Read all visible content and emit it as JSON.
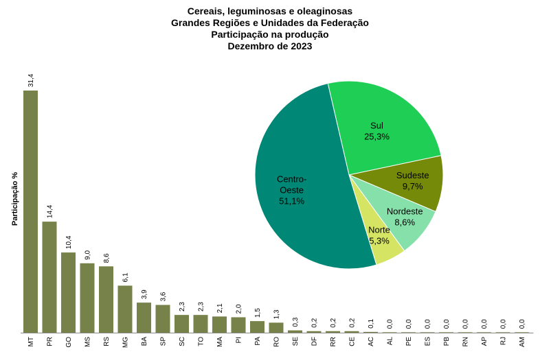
{
  "chart_data": [
    {
      "type": "bar",
      "title": [
        "Cereais, leguminosas e oleaginosas",
        "Grandes Regiões e Unidades da Federação",
        "Participação na produção",
        "Dezembro de 2023"
      ],
      "ylabel": "Participação %",
      "xlabel": "",
      "ylim": [
        0,
        35
      ],
      "grid": false,
      "color": "#77824a",
      "categories": [
        "MT",
        "PR",
        "GO",
        "MS",
        "RS",
        "MG",
        "BA",
        "SP",
        "SC",
        "TO",
        "MA",
        "PI",
        "PA",
        "RO",
        "SE",
        "DF",
        "RR",
        "CE",
        "AC",
        "AL",
        "PE",
        "ES",
        "PB",
        "RN",
        "AP",
        "RJ",
        "AM"
      ],
      "values": [
        31.4,
        14.4,
        10.4,
        9.0,
        8.6,
        6.1,
        3.9,
        3.6,
        2.3,
        2.3,
        2.1,
        2.0,
        1.5,
        1.3,
        0.3,
        0.2,
        0.2,
        0.2,
        0.1,
        0.0,
        0.0,
        0.0,
        0.0,
        0.0,
        0.0,
        0.0,
        0.0
      ],
      "value_labels": [
        "31,4",
        "14,4",
        "10,4",
        "9,0",
        "8,6",
        "6,1",
        "3,9",
        "3,6",
        "2,3",
        "2,3",
        "2,1",
        "2,0",
        "1,5",
        "1,3",
        "0,3",
        "0,2",
        "0,2",
        "0,2",
        "0,1",
        "0,0",
        "0,0",
        "0,0",
        "0,0",
        "0,0",
        "0,0",
        "0,0",
        "0,0"
      ]
    },
    {
      "type": "pie",
      "slices": [
        {
          "label": [
            "Sul",
            "25,3%"
          ],
          "value": 25.3,
          "color": "#1fce55"
        },
        {
          "label": [
            "Sudeste",
            "9,7%"
          ],
          "value": 9.7,
          "color": "#768a0a"
        },
        {
          "label": [
            "Nordeste",
            "8,6%"
          ],
          "value": 8.6,
          "color": "#86e0aa"
        },
        {
          "label": [
            "Norte",
            "5,3%"
          ],
          "value": 5.3,
          "color": "#d5e563"
        },
        {
          "label": [
            "Centro-",
            "Oeste",
            "51,1%"
          ],
          "value": 51.1,
          "color": "#008775"
        }
      ]
    }
  ]
}
